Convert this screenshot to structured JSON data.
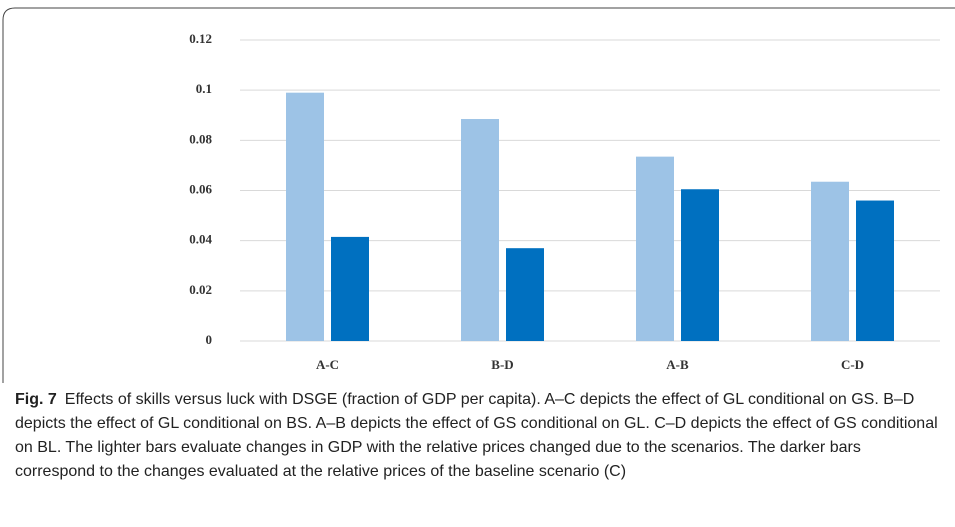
{
  "chart_data": {
    "type": "bar",
    "categories": [
      "A-C",
      "B-D",
      "A-B",
      "C-D"
    ],
    "series": [
      {
        "color": "#9dc3e6",
        "values": [
          0.099,
          0.0885,
          0.0735,
          0.0635
        ]
      },
      {
        "color": "#0070c0",
        "values": [
          0.0415,
          0.037,
          0.0605,
          0.056
        ]
      }
    ],
    "ylim": [
      0,
      0.12
    ],
    "yticks": [
      0,
      0.02,
      0.04,
      0.06,
      0.08,
      0.1,
      0.12
    ],
    "grid": true,
    "caption_label": "Fig. 7",
    "caption": "Effects of skills versus luck with DSGE (fraction of GDP per capita). A–C depicts the effect of GL conditional on GS. B–D depicts the effect of GL conditional on BS. A–B depicts the effect of GS conditional on GL. C–D depicts the effect of GS conditional on BL. The lighter bars evaluate changes in GDP with the relative prices changed due to the scenarios. The darker bars correspond to the changes evaluated at the relative prices of the baseline scenario (C)"
  }
}
